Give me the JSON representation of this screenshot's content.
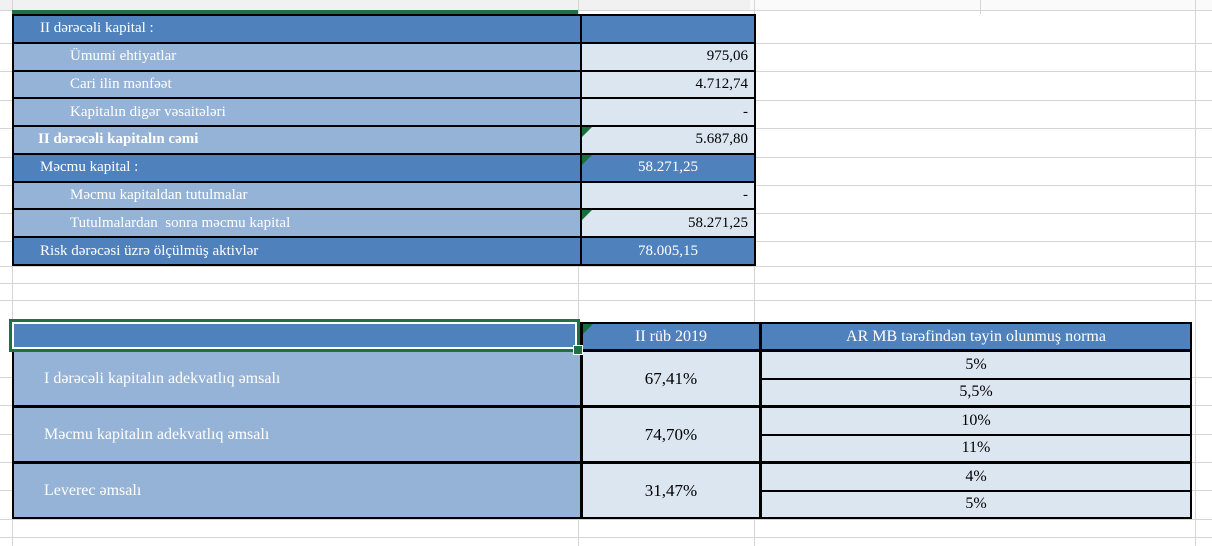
{
  "colors": {
    "header_blue": "#4f81bd",
    "row_blue": "#95b3d7",
    "value_light_blue": "#dce6f1",
    "selection_green": "#1e7145",
    "flag_green": "#17703c",
    "border_black": "#000000",
    "gridline_gray": "#d5d5d5"
  },
  "table1": {
    "rows": [
      {
        "label": "II dərəcəli kapital :",
        "value": ""
      },
      {
        "label": "Ümumi ehtiyatlar",
        "value": "975,06"
      },
      {
        "label": "Cari ilin mənfəət",
        "value": "4.712,74"
      },
      {
        "label": "Kapitalın digər vəsaitələri",
        "value": "-"
      },
      {
        "label": "II dərəcəli kapitalın cəmi",
        "value": "5.687,80"
      },
      {
        "label": "Məcmu kapital :",
        "value": "58.271,25"
      },
      {
        "label": "Məcmu kapitaldan tutulmalar",
        "value": "-"
      },
      {
        "label": "Tutulmalardan  sonra məcmu kapital",
        "value": "58.271,25"
      },
      {
        "label": "Risk dərəcəsi üzrə ölçülmüş aktivlər",
        "value": "78.005,15"
      }
    ]
  },
  "table2": {
    "header": {
      "label": "",
      "period": "II rüb 2019",
      "norma": "AR MB tərəfindən təyin olunmuş norma"
    },
    "rows": [
      {
        "label": "I dərəcəli kapitalın adekvatlıq əmsalı",
        "value": "67,41%",
        "norma_min": "5%",
        "norma_max": "5,5%"
      },
      {
        "label": "Məcmu kapitalın adekvatlıq əmsalı",
        "value": "74,70%",
        "norma_min": "10%",
        "norma_max": "11%"
      },
      {
        "label": "Leverec əmsalı",
        "value": "31,47%",
        "norma_min": "4%",
        "norma_max": "5%"
      }
    ]
  }
}
